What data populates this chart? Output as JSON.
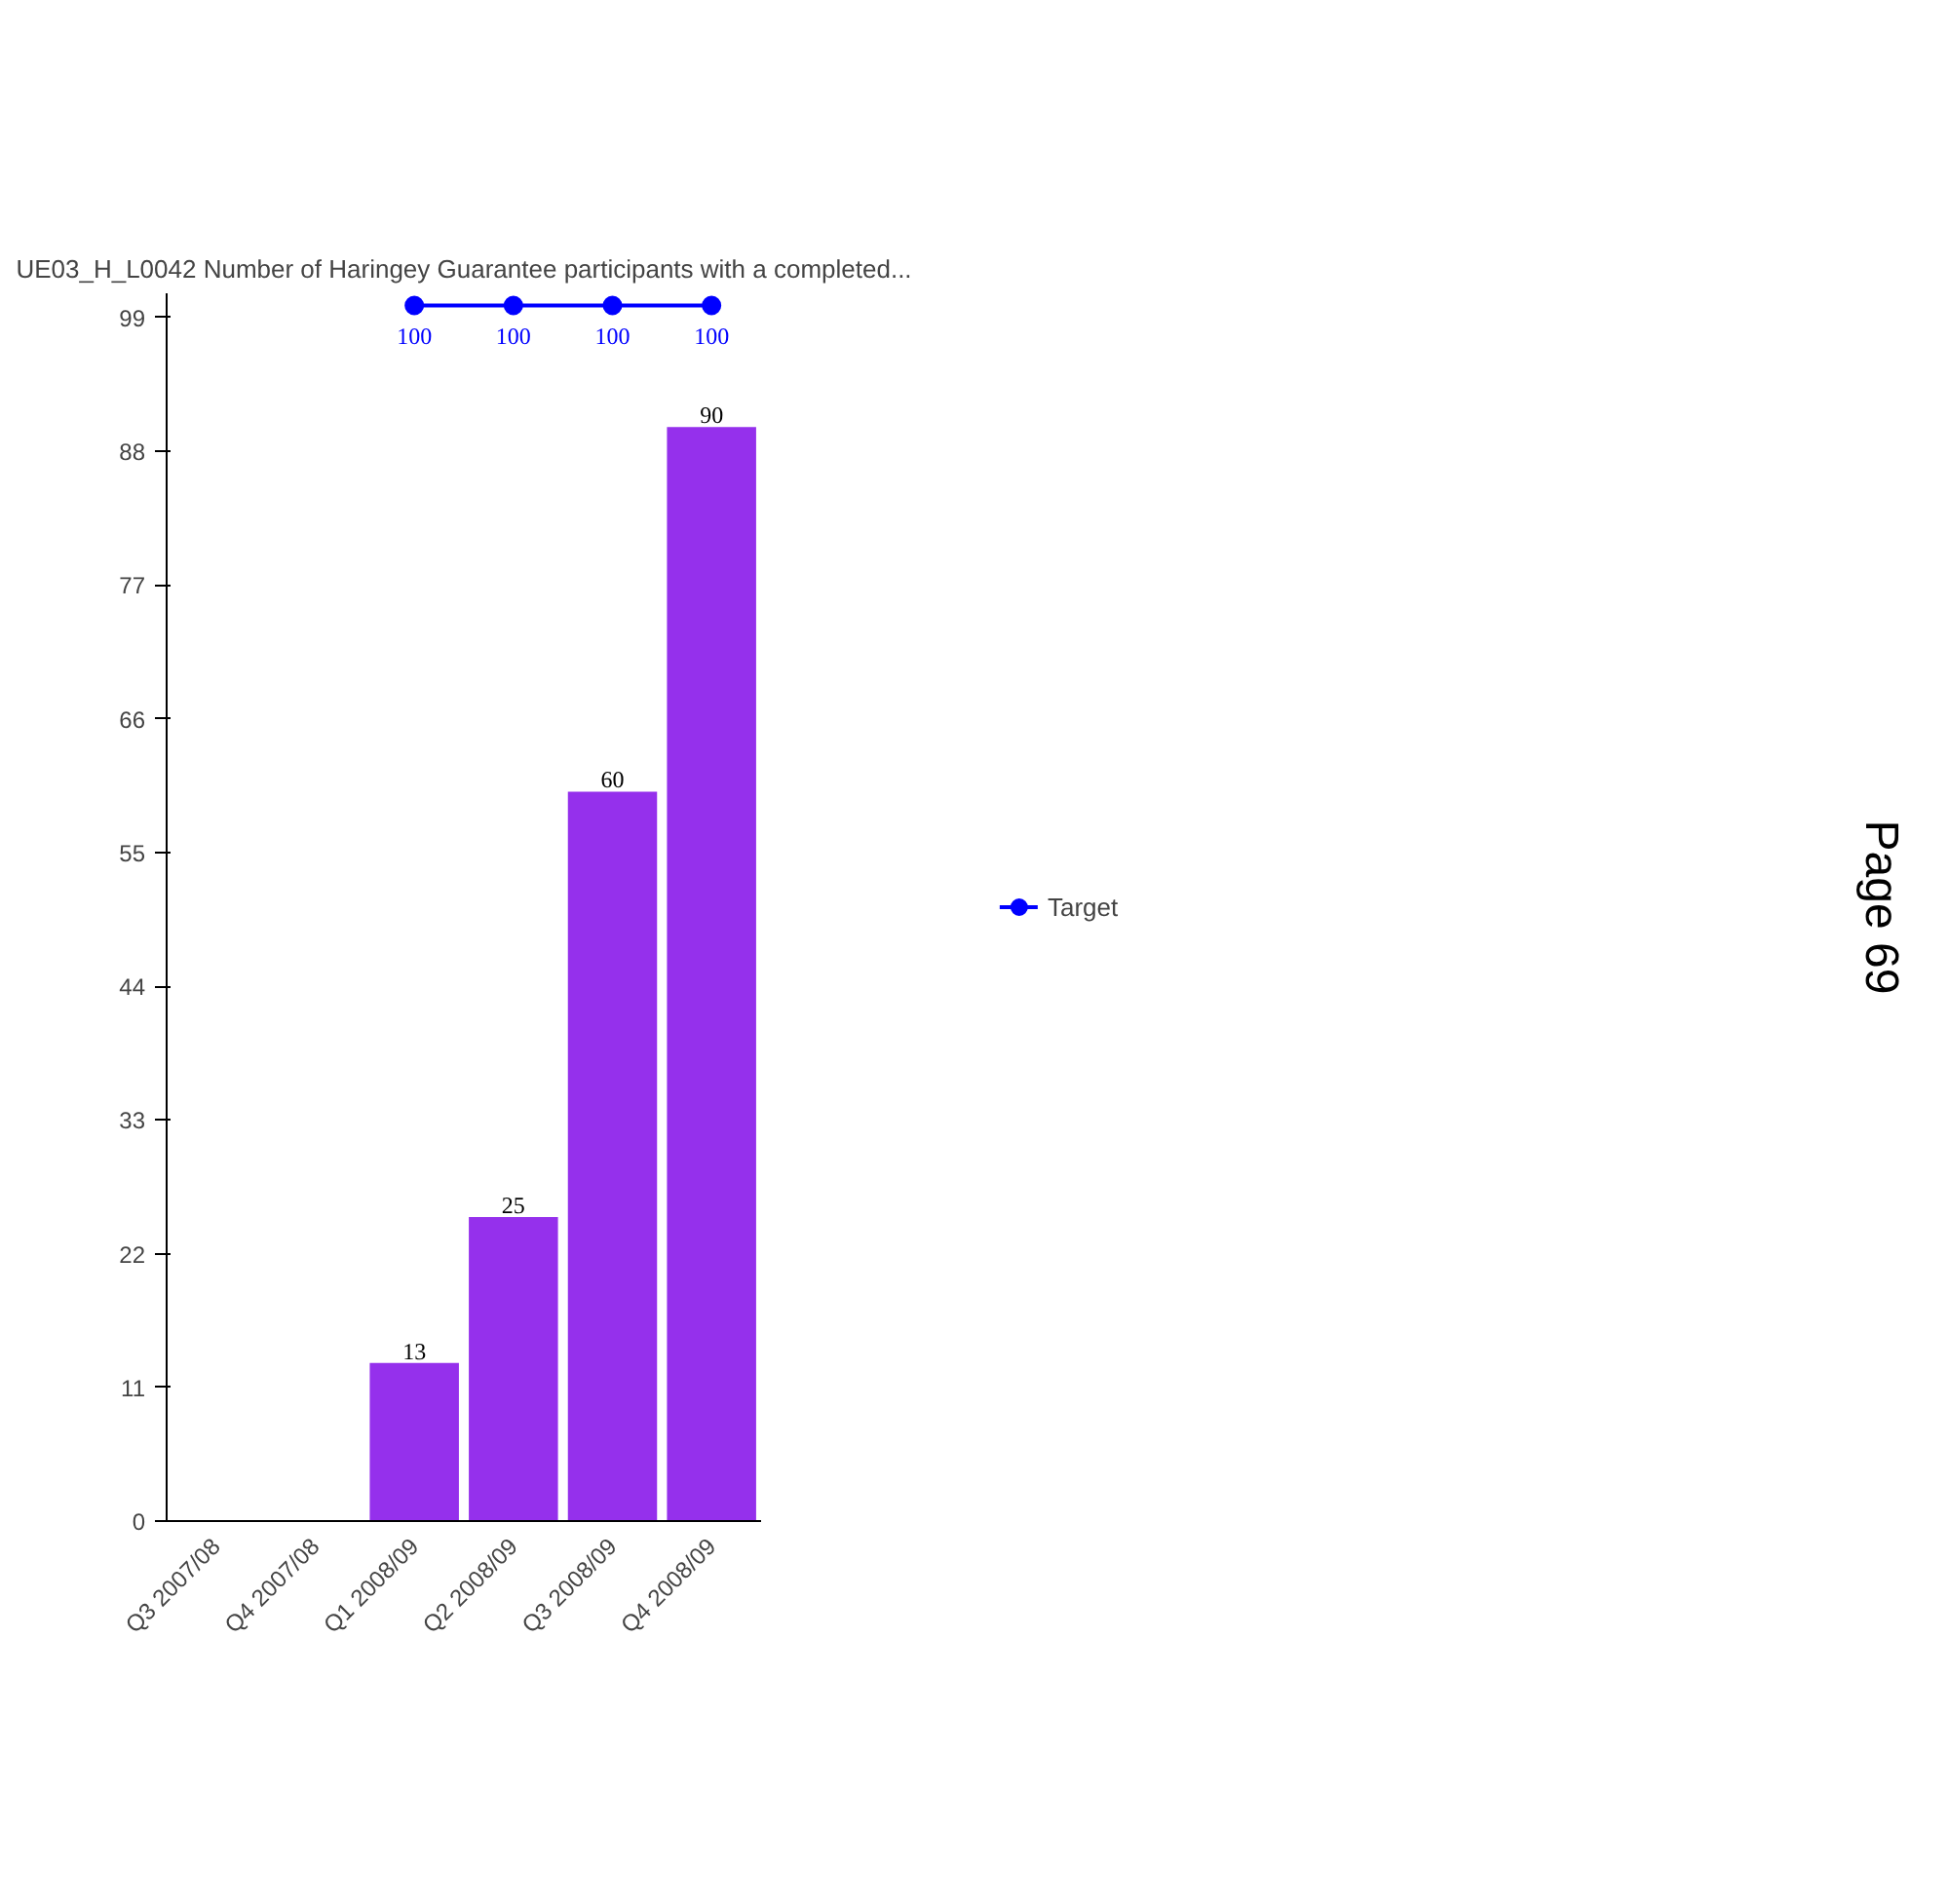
{
  "chart_data": {
    "type": "bar",
    "title": "UE03_H_L0042 Number of Haringey Guarantee participants with a completed...",
    "categories": [
      "Q3 2007/08",
      "Q4 2007/08",
      "Q1 2008/09",
      "Q2 2008/09",
      "Q3 2008/09",
      "Q4 2008/09"
    ],
    "series": [
      {
        "color": "#9530ec",
        "values": [
          null,
          null,
          13,
          25,
          60,
          90
        ]
      },
      {
        "type": "line",
        "name": "Target",
        "color": "#0000ff",
        "marker": "circle",
        "values": [
          null,
          null,
          100,
          100,
          100,
          100
        ]
      }
    ],
    "ylim": [
      0,
      101
    ],
    "yticks": [
      0,
      11,
      22,
      33,
      44,
      55,
      66,
      77,
      88,
      99
    ],
    "data_labels": true,
    "grid": false,
    "legend": "right",
    "annotations": [
      "Page 69"
    ]
  }
}
